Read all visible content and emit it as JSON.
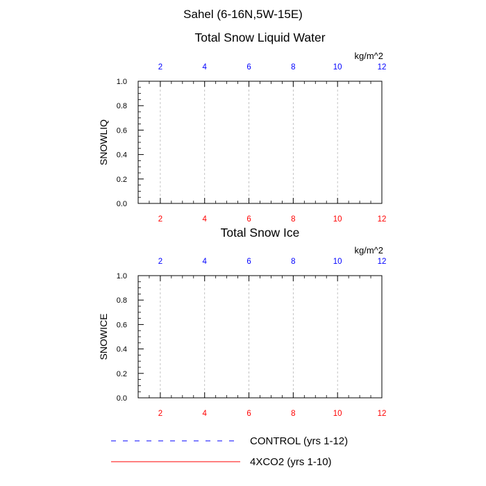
{
  "figure": {
    "title": "Sahel (6-16N,5W-15E)"
  },
  "colors": {
    "control": "#0000ff",
    "co2": "#ff0000",
    "grid": "#b4b4b4",
    "axis": "#000000"
  },
  "chart_data": [
    {
      "type": "line",
      "title": "Total Snow Liquid Water",
      "ylabel": "SNOWLIQ",
      "units": "kg/m^2",
      "xlim": [
        1,
        12
      ],
      "ylim": [
        0,
        1
      ],
      "x_ticks": [
        2,
        4,
        6,
        8,
        10,
        12
      ],
      "x_tick_labels": [
        "2",
        "4",
        "6",
        "8",
        "10",
        "12"
      ],
      "y_ticks": [
        0,
        0.2,
        0.4,
        0.6,
        0.8,
        1.0
      ],
      "y_tick_labels": [
        "0.0",
        "0.2",
        "0.4",
        "0.6",
        "0.8",
        "1.0"
      ],
      "grid": "vertical-dashed",
      "series": [
        {
          "name": "CONTROL (yrs 1-12)",
          "color": "#0000ff",
          "style": "dashed",
          "x": [
            1,
            2,
            3,
            4,
            5,
            6,
            7,
            8,
            9,
            10,
            11,
            12
          ],
          "values": [
            0,
            0,
            0,
            0,
            0,
            0,
            0,
            0,
            0,
            0,
            0,
            0
          ]
        },
        {
          "name": "4XCO2 (yrs 1-10)",
          "color": "#ff0000",
          "style": "solid",
          "x": [
            1,
            2,
            3,
            4,
            5,
            6,
            7,
            8,
            9,
            10,
            11,
            12
          ],
          "values": [
            0,
            0,
            0,
            0,
            0,
            0,
            0,
            0,
            0,
            0,
            0,
            0
          ]
        }
      ]
    },
    {
      "type": "line",
      "title": "Total Snow Ice",
      "ylabel": "SNOWICE",
      "units": "kg/m^2",
      "xlim": [
        1,
        12
      ],
      "ylim": [
        0,
        1
      ],
      "x_ticks": [
        2,
        4,
        6,
        8,
        10,
        12
      ],
      "x_tick_labels": [
        "2",
        "4",
        "6",
        "8",
        "10",
        "12"
      ],
      "y_ticks": [
        0,
        0.2,
        0.4,
        0.6,
        0.8,
        1.0
      ],
      "y_tick_labels": [
        "0.0",
        "0.2",
        "0.4",
        "0.6",
        "0.8",
        "1.0"
      ],
      "grid": "vertical-dashed",
      "series": [
        {
          "name": "CONTROL (yrs 1-12)",
          "color": "#0000ff",
          "style": "dashed",
          "x": [
            1,
            2,
            3,
            4,
            5,
            6,
            7,
            8,
            9,
            10,
            11,
            12
          ],
          "values": [
            0,
            0,
            0,
            0,
            0,
            0,
            0,
            0,
            0,
            0,
            0,
            0
          ]
        },
        {
          "name": "4XCO2 (yrs 1-10)",
          "color": "#ff0000",
          "style": "solid",
          "x": [
            1,
            2,
            3,
            4,
            5,
            6,
            7,
            8,
            9,
            10,
            11,
            12
          ],
          "values": [
            0,
            0,
            0,
            0,
            0,
            0,
            0,
            0,
            0,
            0,
            0,
            0
          ]
        }
      ]
    }
  ],
  "legend": {
    "position": "bottom",
    "items": [
      {
        "label": "CONTROL (yrs 1-12)",
        "color": "#0000ff",
        "style": "dashed"
      },
      {
        "label": "4XCO2 (yrs 1-10)",
        "color": "#ff0000",
        "style": "solid"
      }
    ]
  }
}
